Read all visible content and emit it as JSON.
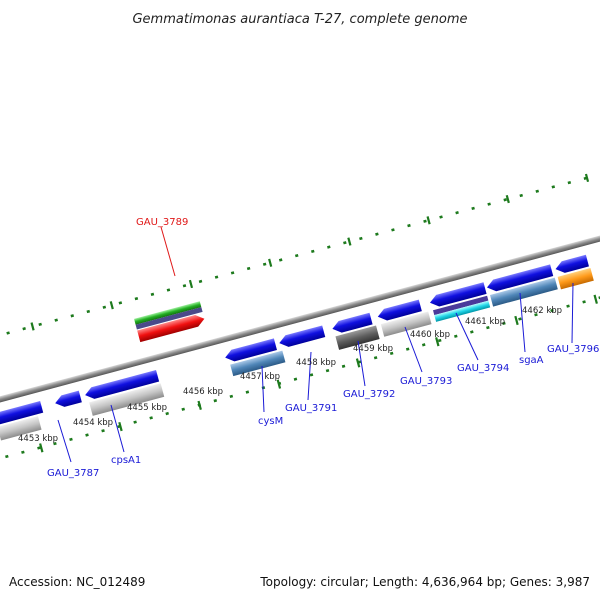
{
  "title": "Gemmatimonas aurantiaca T-27, complete genome",
  "footer": {
    "accession": "Accession: NC_012489",
    "summary": "Topology: circular; Length: 4,636,964 bp; Genes: 3,987"
  },
  "colors": {
    "backbone": "#8a8a8a",
    "tick": "#1d7a1d",
    "gene_label": "#1a1ad6",
    "highlight_label": "#e01818",
    "cds": "#1010e0"
  },
  "ruler_labels": [
    "4453 kbp",
    "4454 kbp",
    "4455 kbp",
    "4456 kbp",
    "4457 kbp",
    "4458 kbp",
    "4459 kbp",
    "4460 kbp",
    "4461 kbp",
    "4462 kbp"
  ],
  "gene_labels": [
    "GAU_3787",
    "cpsA1",
    "cysM",
    "GAU_3791",
    "GAU_3792",
    "GAU_3793",
    "GAU_3794",
    "sgaA",
    "GAU_3796",
    "GAU_3789"
  ]
}
